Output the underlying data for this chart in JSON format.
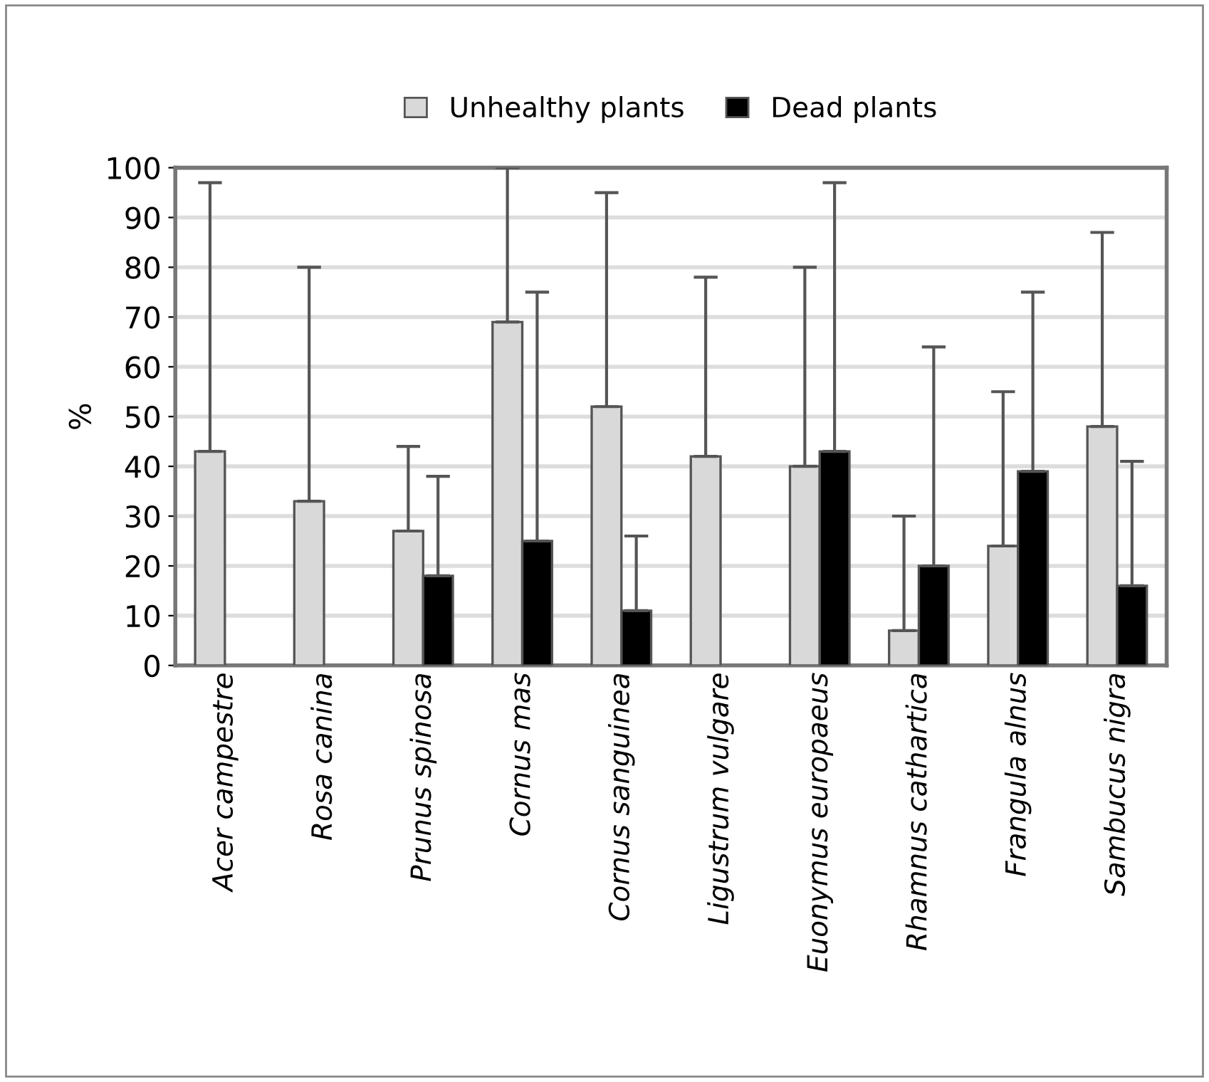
{
  "chart_data": {
    "type": "bar",
    "ylabel": "%",
    "categories": [
      "Acer campestre",
      "Rosa canina",
      "Prunus spinosa",
      "Cornus mas",
      "Cornus sanguinea",
      "Ligustrum vulgare",
      "Euonymus europaeus",
      "Rhamnus cathartica",
      "Frangula alnus",
      "Sambucus nigra"
    ],
    "series": [
      {
        "name": "Unhealthy plants",
        "color": "#d9d9d9",
        "values": [
          43,
          33,
          27,
          69,
          52,
          42,
          40,
          7,
          24,
          48
        ],
        "errors": [
          [
            43,
            97
          ],
          [
            33,
            80
          ],
          [
            27,
            44
          ],
          [
            69,
            100
          ],
          [
            52,
            95
          ],
          [
            42,
            78
          ],
          [
            40,
            80
          ],
          [
            7,
            30
          ],
          [
            24,
            55
          ],
          [
            48,
            87
          ]
        ]
      },
      {
        "name": "Dead plants",
        "color": "#000000",
        "values": [
          null,
          null,
          18,
          25,
          11,
          null,
          43,
          20,
          39,
          16
        ],
        "errors": [
          null,
          null,
          [
            18,
            38
          ],
          [
            25,
            75
          ],
          [
            11,
            26
          ],
          null,
          [
            43,
            97
          ],
          [
            20,
            64
          ],
          [
            39,
            75
          ],
          [
            16,
            41
          ]
        ]
      }
    ],
    "ylim": [
      0,
      100
    ],
    "yticks": [
      0,
      10,
      20,
      30,
      40,
      50,
      60,
      70,
      80,
      90,
      100
    ],
    "grid": "y",
    "legend": "top"
  }
}
